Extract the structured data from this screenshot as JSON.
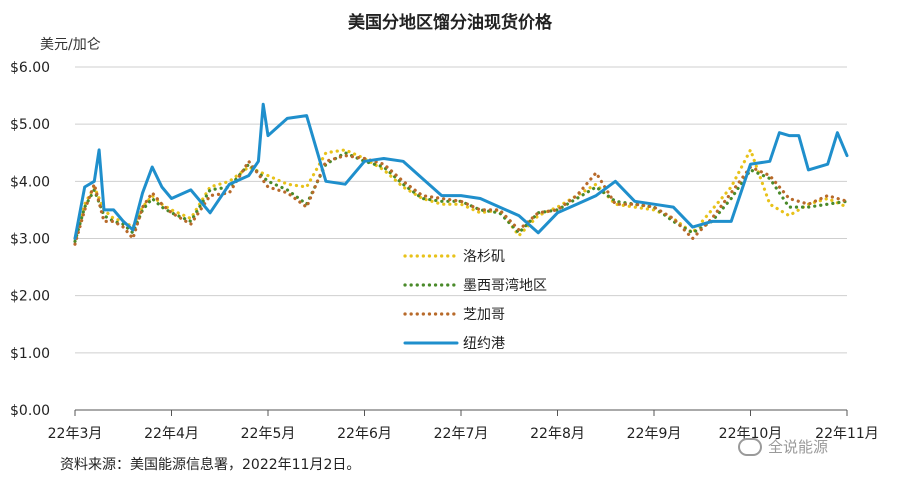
{
  "chart_data": {
    "type": "line",
    "title": "美国分地区馏分油现货价格",
    "ylabel": "美元/加仑",
    "xlabel": "",
    "ylim": [
      0,
      6
    ],
    "yticks": [
      0,
      1,
      2,
      3,
      4,
      5,
      6
    ],
    "ytick_labels": [
      "$0.00",
      "$1.00",
      "$2.00",
      "$3.00",
      "$4.00",
      "$5.00",
      "$6.00"
    ],
    "x_categories": [
      "22年3月",
      "22年4月",
      "22年5月",
      "22年6月",
      "22年7月",
      "22年8月",
      "22年9月",
      "22年10月",
      "22年11月"
    ],
    "grid": true,
    "legend_position": "center",
    "series": [
      {
        "name": "洛杉矶",
        "color": "#e8c21a",
        "style": "dotted",
        "x": [
          0,
          0.1,
          0.2,
          0.3,
          0.4,
          0.5,
          0.6,
          0.7,
          0.8,
          0.9,
          1,
          1.2,
          1.4,
          1.6,
          1.8,
          2,
          2.2,
          2.4,
          2.6,
          2.8,
          3,
          3.2,
          3.4,
          3.6,
          3.8,
          4,
          4.2,
          4.4,
          4.6,
          4.8,
          5,
          5.2,
          5.4,
          5.6,
          5.8,
          6,
          6.2,
          6.4,
          6.6,
          6.8,
          7,
          7.2,
          7.4,
          7.6,
          7.8,
          8
        ],
        "values": [
          3.0,
          3.6,
          3.9,
          3.5,
          3.35,
          3.3,
          3.2,
          3.55,
          3.75,
          3.6,
          3.5,
          3.35,
          3.9,
          4.0,
          4.25,
          4.1,
          3.95,
          3.9,
          4.5,
          4.55,
          4.4,
          4.2,
          3.9,
          3.7,
          3.6,
          3.6,
          3.45,
          3.5,
          3.05,
          3.4,
          3.55,
          3.75,
          3.95,
          3.6,
          3.55,
          3.5,
          3.35,
          3.1,
          3.5,
          3.9,
          4.55,
          3.6,
          3.4,
          3.6,
          3.7,
          3.55
        ]
      },
      {
        "name": "墨西哥湾地区",
        "color": "#4a8a2a",
        "style": "dotted",
        "x": [
          0,
          0.1,
          0.2,
          0.3,
          0.4,
          0.5,
          0.6,
          0.7,
          0.8,
          0.9,
          1,
          1.2,
          1.4,
          1.6,
          1.8,
          2,
          2.2,
          2.4,
          2.6,
          2.8,
          3,
          3.2,
          3.4,
          3.6,
          3.8,
          4,
          4.2,
          4.4,
          4.6,
          4.8,
          5,
          5.2,
          5.4,
          5.6,
          5.8,
          6,
          6.2,
          6.4,
          6.6,
          6.8,
          7,
          7.2,
          7.4,
          7.6,
          7.8,
          8
        ],
        "values": [
          2.95,
          3.55,
          3.85,
          3.4,
          3.3,
          3.25,
          3.1,
          3.5,
          3.7,
          3.55,
          3.45,
          3.3,
          3.85,
          3.9,
          4.3,
          4.0,
          3.85,
          3.6,
          4.3,
          4.5,
          4.35,
          4.25,
          3.95,
          3.7,
          3.65,
          3.65,
          3.5,
          3.45,
          3.1,
          3.45,
          3.5,
          3.7,
          3.9,
          3.65,
          3.6,
          3.55,
          3.3,
          3.1,
          3.3,
          3.7,
          4.2,
          4.05,
          3.55,
          3.55,
          3.6,
          3.65
        ]
      },
      {
        "name": "芝加哥",
        "color": "#b86a2a",
        "style": "dotted",
        "x": [
          0,
          0.1,
          0.2,
          0.3,
          0.4,
          0.5,
          0.6,
          0.7,
          0.8,
          0.9,
          1,
          1.2,
          1.4,
          1.6,
          1.8,
          2,
          2.2,
          2.4,
          2.6,
          2.8,
          3,
          3.2,
          3.4,
          3.6,
          3.8,
          4,
          4.2,
          4.4,
          4.6,
          4.8,
          5,
          5.2,
          5.4,
          5.6,
          5.8,
          6,
          6.2,
          6.4,
          6.6,
          6.8,
          7,
          7.2,
          7.4,
          7.6,
          7.8,
          8
        ],
        "values": [
          2.9,
          3.5,
          3.95,
          3.3,
          3.3,
          3.2,
          3.0,
          3.55,
          3.8,
          3.6,
          3.45,
          3.25,
          3.75,
          3.8,
          4.35,
          3.9,
          3.8,
          3.55,
          4.35,
          4.45,
          4.4,
          4.3,
          4.0,
          3.75,
          3.7,
          3.65,
          3.5,
          3.5,
          3.15,
          3.45,
          3.5,
          3.75,
          4.15,
          3.6,
          3.6,
          3.55,
          3.35,
          3.0,
          3.35,
          3.8,
          4.25,
          4.1,
          3.7,
          3.6,
          3.75,
          3.65
        ]
      },
      {
        "name": "纽约港",
        "color": "#1f8fcc",
        "style": "solid",
        "x": [
          0,
          0.1,
          0.2,
          0.25,
          0.3,
          0.4,
          0.5,
          0.6,
          0.7,
          0.8,
          0.9,
          1,
          1.2,
          1.4,
          1.6,
          1.8,
          1.9,
          1.95,
          2,
          2.2,
          2.4,
          2.6,
          2.8,
          3,
          3.2,
          3.4,
          3.6,
          3.8,
          4,
          4.2,
          4.4,
          4.6,
          4.8,
          5,
          5.2,
          5.4,
          5.6,
          5.8,
          6,
          6.2,
          6.4,
          6.6,
          6.8,
          7,
          7.2,
          7.3,
          7.4,
          7.5,
          7.6,
          7.8,
          7.9,
          8
        ],
        "values": [
          3.0,
          3.9,
          4.0,
          4.55,
          3.5,
          3.5,
          3.3,
          3.15,
          3.8,
          4.25,
          3.9,
          3.7,
          3.85,
          3.45,
          3.95,
          4.1,
          4.35,
          5.35,
          4.8,
          5.1,
          5.15,
          4.0,
          3.95,
          4.35,
          4.4,
          4.35,
          4.05,
          3.75,
          3.75,
          3.7,
          3.55,
          3.4,
          3.1,
          3.45,
          3.6,
          3.75,
          4.0,
          3.65,
          3.6,
          3.55,
          3.2,
          3.3,
          3.3,
          4.3,
          4.35,
          4.85,
          4.8,
          4.8,
          4.2,
          4.3,
          4.85,
          4.45
        ]
      }
    ]
  },
  "source_note": "资料来源：美国能源信息署，2022年11月2日。",
  "watermark": "全说能源"
}
